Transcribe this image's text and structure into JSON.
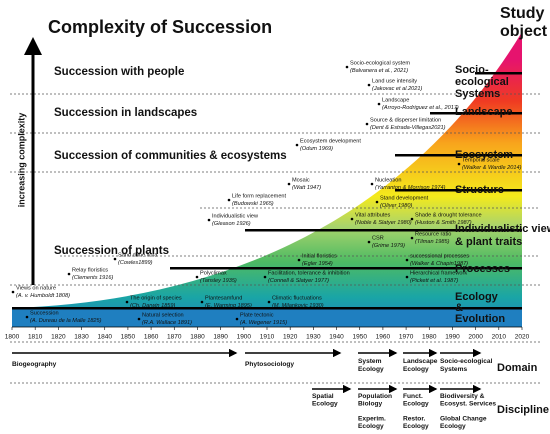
{
  "title": "Complexity of Succession",
  "study_heading": [
    "Study",
    "object"
  ],
  "complexity_label": "increasing complexity",
  "levels": [
    "Succession with people",
    "Succession in landscapes",
    "Succession of communities & ecosystems",
    "Succession of plants"
  ],
  "study_objects": [
    [
      "Socio-",
      "ecological",
      "Systems"
    ],
    [
      "Landscape"
    ],
    [
      "Ecosystem"
    ],
    [
      "Structure"
    ],
    [
      "Individualistic view",
      "& plant traits"
    ],
    [
      "Processes"
    ],
    [
      "Ecology",
      "&",
      "Evolution"
    ]
  ],
  "axis": {
    "ticks": [
      1800,
      1810,
      1820,
      1830,
      1840,
      1850,
      1860,
      1870,
      1880,
      1890,
      1900,
      1910,
      1920,
      1930,
      1940,
      1950,
      1960,
      1970,
      1980,
      1990,
      2000,
      2010,
      2020
    ]
  },
  "annotations": [
    {
      "text": "Views on nature",
      "cite": "(A. v. Humboldt 1808)"
    },
    {
      "text": "Succession",
      "cite": "(A. Dureau de la Malle 1825)"
    },
    {
      "text": "The origin of species",
      "cite": "(Ch. Darwin 1859)"
    },
    {
      "text": "Natural selection",
      "cite": "(R.A. Wallace 1891)"
    },
    {
      "text": "Plantesamfund",
      "cite": "(E. Warming 1895)"
    },
    {
      "text": "Climatic fluctuations",
      "cite": "(M. Milankovic 1930)"
    },
    {
      "text": "Plate tectonic",
      "cite": "(A. Wegener 1915)"
    },
    {
      "text": "Relay floristics",
      "cite": "(Clements 1916)"
    },
    {
      "text": "Sand dune flora",
      "cite": "(Cowles1899)"
    },
    {
      "text": "Polyclimax",
      "cite": "(Tansley 1935)"
    },
    {
      "text": "Initial floristics",
      "cite": "(Egler 1954)"
    },
    {
      "text": "Facilitation, tolerance & inhibition",
      "cite": "(Connell & Slatyer 1977)"
    },
    {
      "text": "CSR",
      "cite": "(Grime 1979)"
    },
    {
      "text": "successional processes",
      "cite": "(Walker & Chapin1987)"
    },
    {
      "text": "Hierarchical framework",
      "cite": "(Pickett et al. 1987)"
    },
    {
      "text": "Vital attributes",
      "cite": "(Noble & Slatyer 1980)"
    },
    {
      "text": "Shade & drought tolerance",
      "cite": "(Huston & Smith 1987)"
    },
    {
      "text": "Resource ratio",
      "cite": "(Tilman 1985)"
    },
    {
      "text": "Individualistic view",
      "cite": "(Gleason 1926)"
    },
    {
      "text": "Life form replacement",
      "cite": "(Budowski 1965)"
    },
    {
      "text": "Mosaic",
      "cite": "(Watt 1947)"
    },
    {
      "text": "Nucleation",
      "cite": "(Yarranton & Morrison 1974)"
    },
    {
      "text": "Stand development",
      "cite": "(Oliver 1980)"
    },
    {
      "text": "Ecosystem development",
      "cite": "(Odum 1969)"
    },
    {
      "text": "Temporal scale",
      "cite": "(Walker & Wardle 2014)"
    },
    {
      "text": "Landscape",
      "cite": "(Arroyo-Rodriguez et al., 2017)"
    },
    {
      "text": "Source & disperser limitation",
      "cite": "(Dent & Estrada-Villegas2021)"
    },
    {
      "text": "Socio-ecological system",
      "cite": "(Balvanera et al., 2021)"
    },
    {
      "text": "Land use intensity",
      "cite": "(Jakovac et al.2021)"
    }
  ],
  "domain": {
    "label": "Domain",
    "items": [
      [
        "Biogeography"
      ],
      [
        "Phytosociology"
      ],
      [
        "System",
        "Ecology"
      ],
      [
        "Landscape",
        "Ecology"
      ],
      [
        "Socio-ecological",
        "Systems"
      ]
    ]
  },
  "discipline": {
    "label": "Discipline",
    "items": [
      [
        "Spatial",
        "Ecology"
      ],
      [
        "Population",
        "Biology",
        "",
        "Experim.",
        "Ecology"
      ],
      [
        "Funct.",
        "Ecology",
        "",
        "Restor.",
        "Ecology"
      ],
      [
        "Biodiversity &",
        "Ecosyst. Services",
        "",
        "Global Change",
        "Ecology"
      ]
    ]
  }
}
